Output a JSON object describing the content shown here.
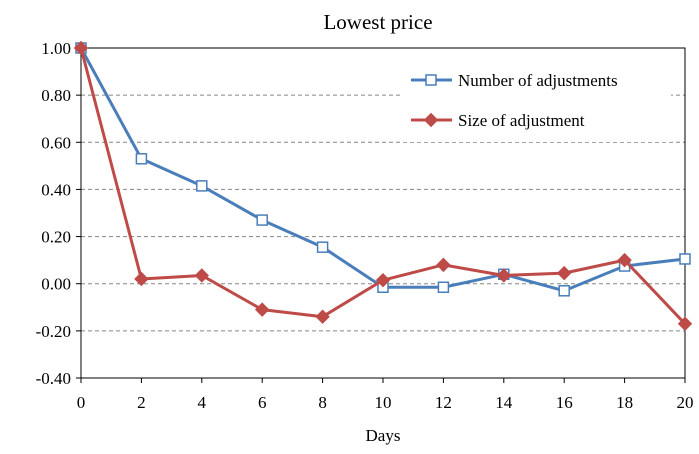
{
  "chart_data": {
    "type": "line",
    "title": "Lowest price",
    "xlabel": "Days",
    "ylabel": "",
    "x": [
      0,
      2,
      4,
      6,
      8,
      10,
      12,
      14,
      16,
      18,
      20
    ],
    "xlim": [
      0,
      20
    ],
    "ylim": [
      -0.4,
      1.0
    ],
    "x_ticks": [
      "0",
      "2",
      "4",
      "6",
      "8",
      "10",
      "12",
      "14",
      "16",
      "18",
      "20"
    ],
    "y_ticks": [
      "-0.40",
      "-0.20",
      "0.00",
      "0.20",
      "0.40",
      "0.60",
      "0.80",
      "1.00"
    ],
    "grid": "horizontal-dashed",
    "legend_position": "top-right",
    "series": [
      {
        "name": "Number of adjustments",
        "color": "#4a7ebb",
        "marker": "open-square",
        "values": [
          1.0,
          0.53,
          0.415,
          0.27,
          0.155,
          -0.015,
          -0.015,
          0.04,
          -0.03,
          0.075,
          0.105
        ]
      },
      {
        "name": "Size of adjustment",
        "color": "#be4b48",
        "marker": "filled-diamond",
        "values": [
          1.0,
          0.02,
          0.035,
          -0.11,
          -0.14,
          0.015,
          0.08,
          0.035,
          0.045,
          0.1,
          -0.17
        ]
      }
    ]
  }
}
